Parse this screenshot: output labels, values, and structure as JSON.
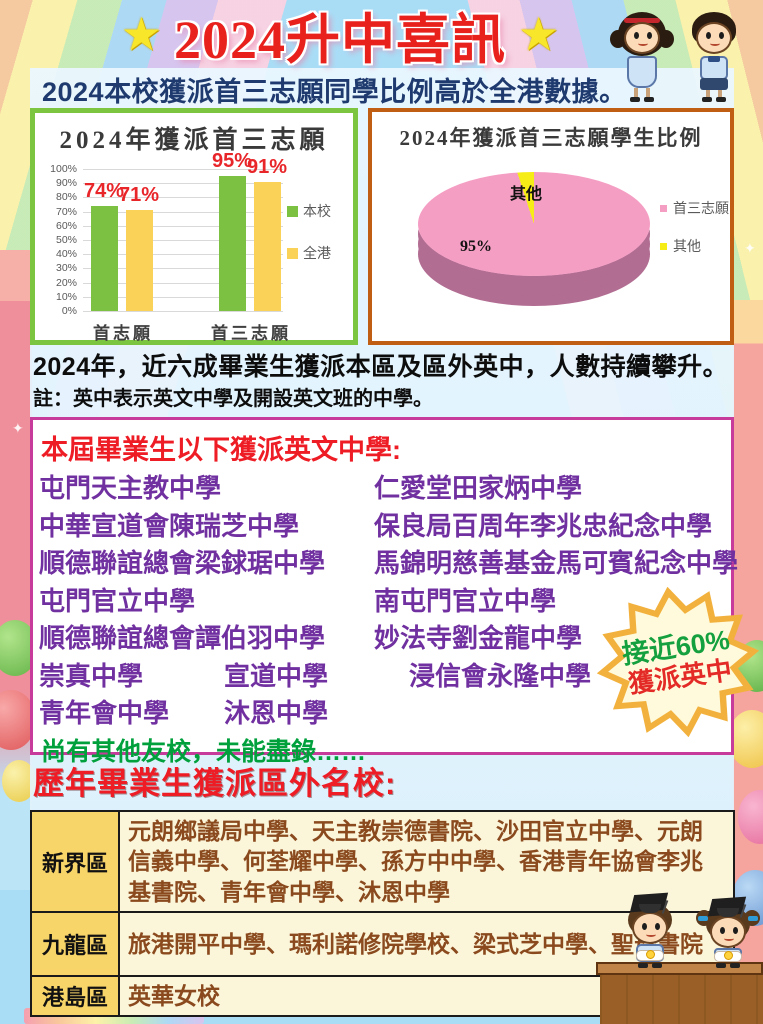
{
  "header": {
    "star": "★",
    "title": "2024升中喜訊",
    "subtitle": "2024本校獲派首三志願同學比例高於全港數據。"
  },
  "chart_data": [
    {
      "type": "bar",
      "title": "2024年獲派首三志願",
      "categories": [
        "首志願",
        "首三志願"
      ],
      "series": [
        {
          "name": "本校",
          "color": "#7dc142",
          "values": [
            74,
            95
          ]
        },
        {
          "name": "全港",
          "color": "#fbd258",
          "values": [
            71,
            91
          ]
        }
      ],
      "ylim": [
        0,
        100
      ],
      "ytick_step": 10,
      "ytick_suffix": "%",
      "data_label_color": "#e8262a",
      "grid": true,
      "legend_position": "right"
    },
    {
      "type": "pie",
      "title": "2024年獲派首三志願學生比例",
      "labels": [
        "首三志願",
        "其他"
      ],
      "values": [
        95,
        5
      ],
      "colors": [
        "#f59ec4",
        "#f6ec16"
      ],
      "slice_labels": [
        "95%",
        "其他"
      ],
      "effect": "3d",
      "legend_position": "right"
    }
  ],
  "announcement": {
    "line1": "2024年，近六成畢業生獲派本區及區外英中，人數持續攀升。",
    "note": "註：英中表示英文中學及開設英文班的中學。"
  },
  "english_schools": {
    "header": "本屆畢業生以下獲派英文中學:",
    "rows": [
      [
        "屯門天主教中學",
        "仁愛堂田家炳中學"
      ],
      [
        "中華宣道會陳瑞芝中學",
        "保良局百周年李兆忠紀念中學"
      ],
      [
        "順德聯誼總會梁銶琚中學",
        "馬錦明慈善基金馬可賓紀念中學"
      ],
      [
        "屯門官立中學",
        "南屯門官立中學"
      ],
      [
        "順德聯誼總會譚伯羽中學",
        "妙法寺劉金龍中學"
      ],
      [
        "崇真中學",
        "宣道中學",
        "浸信會永隆中學"
      ],
      [
        "青年會中學",
        "沐恩中學"
      ]
    ],
    "footer": "尚有其他友校，未能盡錄……"
  },
  "badge": {
    "line1": "接近60%",
    "line2": "獲派英中"
  },
  "district_schools": {
    "header": "歷年畢業生獲派區外名校:",
    "rows": [
      {
        "region": "新界區",
        "schools": "元朗鄉議局中學、天主教崇德書院、沙田官立中學、元朗信義中學、何荃耀中學、孫方中中學、香港青年協會李兆基書院、青年會中學、沐恩中學"
      },
      {
        "region": "九龍區",
        "schools": "旅港開平中學、瑪利諾修院學校、梁式芝中學、聖母書院"
      },
      {
        "region": "港島區",
        "schools": "英華女校"
      }
    ]
  },
  "colors": {
    "title_red": "#e8211d",
    "subtitle_navy": "#1e3a6e",
    "bar_border_green": "#7cc540",
    "pie_border_orange": "#c05e14",
    "schools_border_pink": "#c73c9b",
    "school_text_purple": "#7030a0",
    "footer_green": "#00a03c",
    "table_label_yellow": "#f8d568",
    "table_cell_cream": "#fbf5da",
    "table_text_brown": "#8a4a1e"
  }
}
